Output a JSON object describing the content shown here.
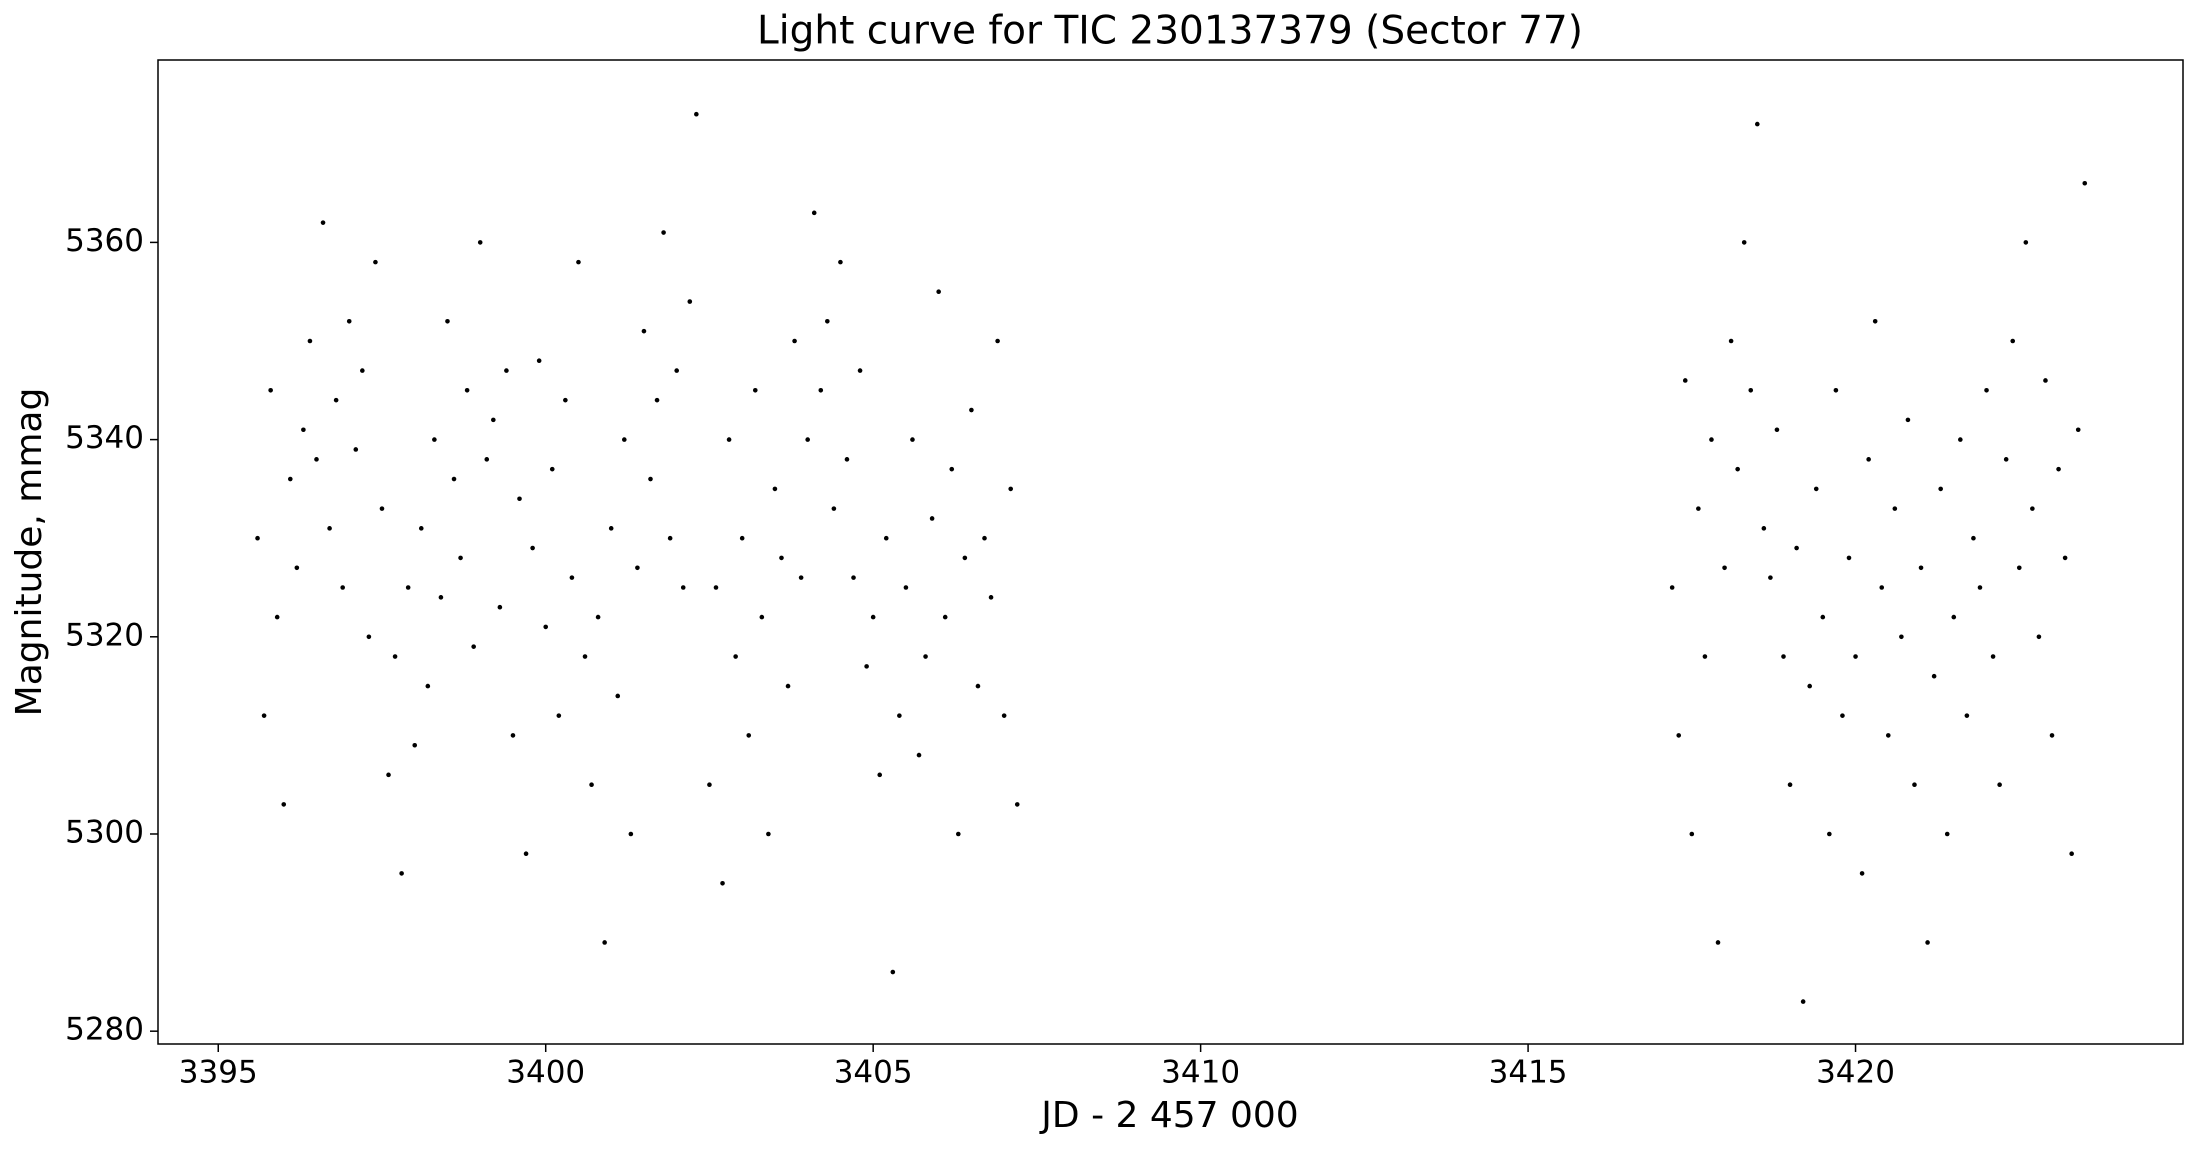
{
  "chart_data": {
    "type": "scatter",
    "title": "Light curve for TIC 230137379 (Sector 77)",
    "x_label": "JD - 2 457 000",
    "y_label": "Magnitude, mmag",
    "color": "#000000",
    "xlim": [
      3394.08,
      3425.0
    ],
    "ylim": [
      5278.7,
      5378.5
    ],
    "xticks": [
      3395,
      3400,
      3405,
      3410,
      3415,
      3420
    ],
    "yticks": [
      5280,
      5300,
      5320,
      5340,
      5360
    ],
    "x": [
      3395.6,
      3395.7,
      3395.8,
      3395.9,
      3396.0,
      3396.1,
      3396.2,
      3396.3,
      3396.4,
      3396.5,
      3396.6,
      3396.7,
      3396.8,
      3396.9,
      3397.0,
      3397.1,
      3397.2,
      3397.3,
      3397.4,
      3397.5,
      3397.6,
      3397.7,
      3397.8,
      3397.9,
      3398.0,
      3398.1,
      3398.2,
      3398.3,
      3398.4,
      3398.5,
      3398.6,
      3398.7,
      3398.8,
      3398.9,
      3399.0,
      3399.1,
      3399.2,
      3399.3,
      3399.4,
      3399.5,
      3399.6,
      3399.7,
      3399.8,
      3399.9,
      3400.0,
      3400.1,
      3400.2,
      3400.3,
      3400.4,
      3400.5,
      3400.6,
      3400.7,
      3400.8,
      3400.9,
      3401.0,
      3401.1,
      3401.2,
      3401.3,
      3401.4,
      3401.5,
      3401.6,
      3401.7,
      3401.8,
      3401.9,
      3402.0,
      3402.1,
      3402.2,
      3402.3,
      3402.5,
      3402.6,
      3402.7,
      3402.8,
      3402.9,
      3403.0,
      3403.1,
      3403.2,
      3403.3,
      3403.4,
      3403.5,
      3403.6,
      3403.7,
      3403.8,
      3403.9,
      3404.0,
      3404.1,
      3404.2,
      3404.3,
      3404.4,
      3404.5,
      3404.6,
      3404.7,
      3404.8,
      3404.9,
      3405.0,
      3405.1,
      3405.2,
      3405.3,
      3405.4,
      3405.5,
      3405.6,
      3405.7,
      3405.8,
      3405.9,
      3406.0,
      3406.1,
      3406.2,
      3406.3,
      3406.4,
      3406.5,
      3406.6,
      3406.7,
      3406.8,
      3406.9,
      3407.0,
      3407.1,
      3407.2,
      3417.2,
      3417.3,
      3417.4,
      3417.5,
      3417.6,
      3417.7,
      3417.8,
      3417.9,
      3418.0,
      3418.1,
      3418.2,
      3418.3,
      3418.4,
      3418.5,
      3418.6,
      3418.7,
      3418.8,
      3418.9,
      3419.0,
      3419.1,
      3419.2,
      3419.3,
      3419.4,
      3419.5,
      3419.6,
      3419.7,
      3419.8,
      3419.9,
      3420.0,
      3420.1,
      3420.2,
      3420.3,
      3420.4,
      3420.5,
      3420.6,
      3420.7,
      3420.8,
      3420.9,
      3421.0,
      3421.1,
      3421.2,
      3421.3,
      3421.4,
      3421.5,
      3421.6,
      3421.7,
      3421.8,
      3421.9,
      3422.0,
      3422.1,
      3422.2,
      3422.3,
      3422.4,
      3422.5,
      3422.6,
      3422.7,
      3422.8,
      3422.9,
      3423.0,
      3423.1,
      3423.2,
      3423.3,
      3423.4,
      3423.5
    ],
    "values": [
      5330,
      5312,
      5345,
      5322,
      5303,
      5336,
      5327,
      5341,
      5350,
      5338,
      5362,
      5331,
      5344,
      5325,
      5352,
      5339,
      5347,
      5320,
      5358,
      5333,
      5306,
      5318,
      5296,
      5325,
      5309,
      5331,
      5315,
      5340,
      5324,
      5352,
      5336,
      5328,
      5345,
      5319,
      5360,
      5338,
      5342,
      5323,
      5347,
      5310,
      5334,
      5298,
      5329,
      5348,
      5321,
      5337,
      5312,
      5344,
      5326,
      5358,
      5318,
      5305,
      5322,
      5289,
      5331,
      5314,
      5340,
      5300,
      5327,
      5351,
      5336,
      5344,
      5361,
      5330,
      5347,
      5325,
      5354,
      5373,
      5305,
      5325,
      5295,
      5340,
      5318,
      5330,
      5310,
      5345,
      5322,
      5300,
      5335,
      5328,
      5315,
      5350,
      5326,
      5340,
      5363,
      5345,
      5352,
      5333,
      5358,
      5338,
      5326,
      5347,
      5317,
      5322,
      5306,
      5330,
      5286,
      5312,
      5325,
      5340,
      5308,
      5318,
      5332,
      5355,
      5322,
      5337,
      5300,
      5328,
      5343,
      5315,
      5330,
      5324,
      5350,
      5312,
      5335,
      5303,
      5325,
      5310,
      5346,
      5300,
      5333,
      5318,
      5340,
      5289,
      5327,
      5350,
      5337,
      5360,
      5345,
      5372,
      5331,
      5326,
      5341,
      5318,
      5305,
      5329,
      5283,
      5315,
      5335,
      5322,
      5300,
      5345,
      5312,
      5328,
      5318,
      5296,
      5338,
      5352,
      5325,
      5310,
      5333,
      5320,
      5342,
      5305,
      5327,
      5289,
      5316,
      5335,
      5300,
      5322,
      5340,
      5312,
      5330,
      5325,
      5345,
      5318,
      5305,
      5338,
      5350,
      5327,
      5360,
      5333,
      5320,
      5346,
      5310,
      5337,
      5328,
      5298,
      5341,
      5366
    ]
  }
}
